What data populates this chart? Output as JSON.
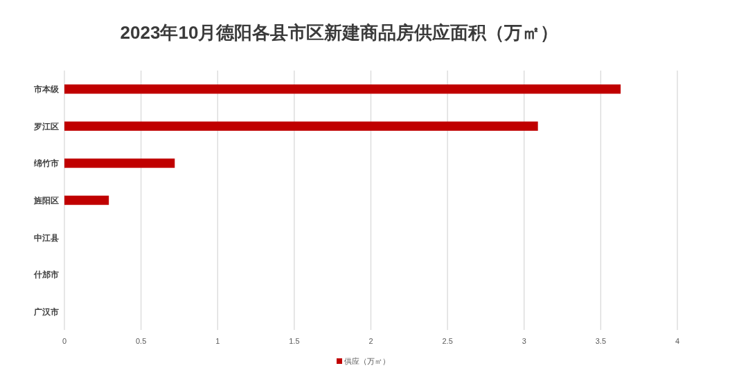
{
  "chart_data": {
    "type": "bar",
    "orientation": "horizontal",
    "title": "2023年10月德阳各县市区新建商品房供应面积（万㎡）",
    "categories": [
      "市本级",
      "罗江区",
      "绵竹市",
      "旌阳区",
      "中江县",
      "什邡市",
      "广汉市"
    ],
    "series": [
      {
        "name": "供应（万㎡）",
        "color": "#c00000",
        "values": [
          3.63,
          3.09,
          0.72,
          0.29,
          0,
          0,
          0
        ]
      }
    ],
    "xlim": [
      0,
      4
    ],
    "xticks": [
      0,
      0.5,
      1,
      1.5,
      2,
      2.5,
      3,
      3.5,
      4
    ],
    "grid": "x",
    "legend": "bottom"
  }
}
